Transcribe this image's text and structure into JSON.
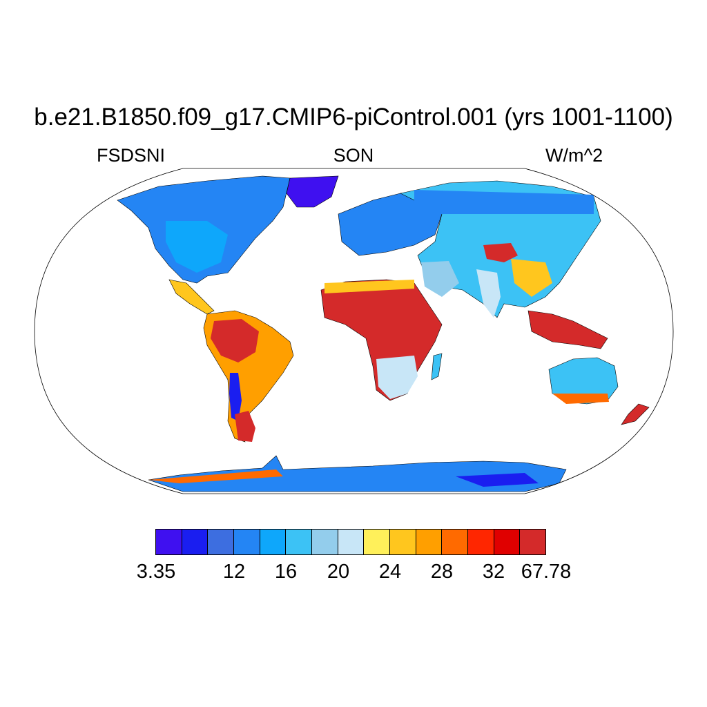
{
  "title": "b.e21.B1850.f09_g17.CMIP6-piControl.001 (yrs 1001-1100)",
  "left_label": "FSDSNI",
  "center_label": "SON",
  "right_label": "W/m^2",
  "colorbar": {
    "colors": [
      "#3f10f0",
      "#1a1ef0",
      "#3d6ee0",
      "#2485f4",
      "#0ea7fb",
      "#3cc2f5",
      "#93cdec",
      "#c8e6f7",
      "#fff05a",
      "#ffc61e",
      "#ff9f00",
      "#ff6a00",
      "#ff2600",
      "#e00000",
      "#d42a2a"
    ],
    "labels": [
      "3.35",
      "12",
      "16",
      "20",
      "24",
      "28",
      "32",
      "67.78"
    ]
  },
  "map_fill": {
    "ocean": "#ffffff",
    "coastline": "#000000"
  }
}
